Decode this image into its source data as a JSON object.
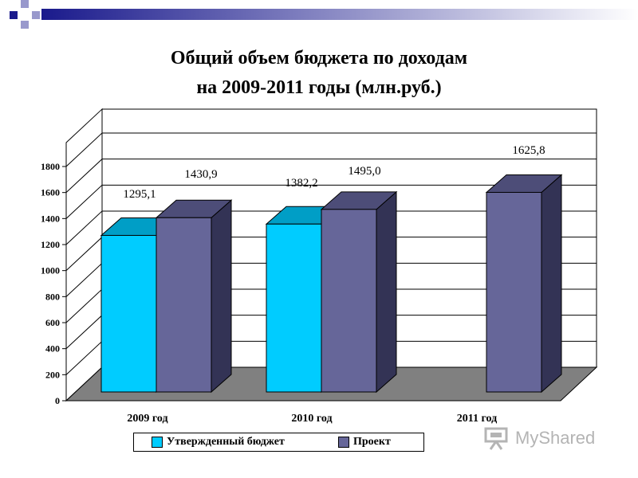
{
  "chart_data": {
    "type": "bar",
    "title": "Общий объем бюджета по доходам на 2009-2011 годы (млн.руб.)",
    "title_lines": [
      "Общий объем бюджета по доходам",
      "на 2009-2011 годы (млн.руб.)"
    ],
    "categories": [
      "2009 год",
      "2010 год",
      "2011 год"
    ],
    "series": [
      {
        "name": "Утвержденный бюджет",
        "values": [
          1295.1,
          1382.2,
          null
        ],
        "labels": [
          "1295,1",
          "1382,2",
          ""
        ],
        "color": "#00ccff",
        "top_color": "#009ec6",
        "side_color": "#00a0c8"
      },
      {
        "name": "Проект",
        "values": [
          1430.9,
          1495.0,
          1625.8
        ],
        "labels": [
          "1430,9",
          "1495,0",
          "1625,8"
        ],
        "color": "#666699",
        "top_color": "#4d4d78",
        "side_color": "#333355"
      }
    ],
    "yticks": [
      0,
      200,
      400,
      600,
      800,
      1000,
      1200,
      1400,
      1600,
      1800
    ],
    "ylim": [
      0,
      1800
    ],
    "grid": true,
    "legend": "bottom",
    "floor_color": "#808080"
  },
  "watermark": {
    "text": "MyShared",
    "icon": "presentation-board-icon"
  },
  "slide_decoration": {
    "accent_color": "#1a1a8c",
    "square_color": "#9999cc"
  }
}
